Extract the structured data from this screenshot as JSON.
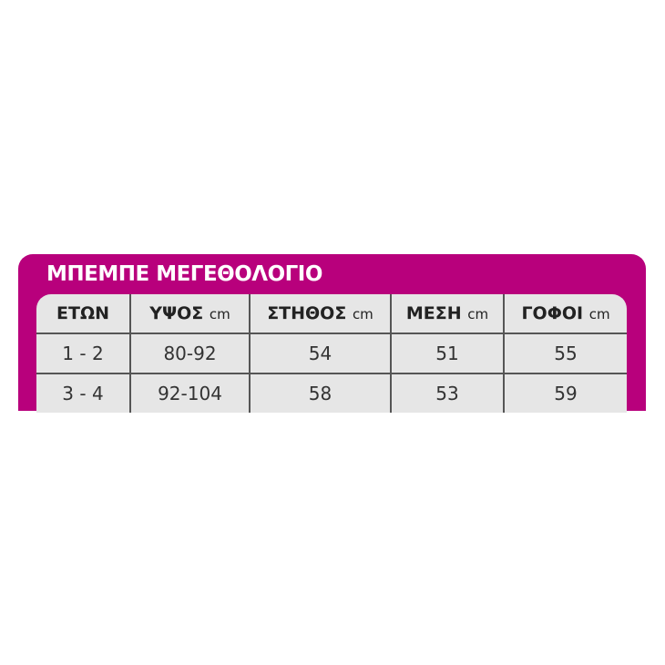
{
  "title": "ΜΠΕΜΠΕ ΜΕΓΕΘΟΛΟΓΙΟ",
  "colors": {
    "panel": "#b8007c",
    "table": "#e6e6e6"
  },
  "headers": [
    {
      "label": "ΕΤΩΝ",
      "unit": ""
    },
    {
      "label": "ΥΨΟΣ",
      "unit": "cm"
    },
    {
      "label": "ΣΤΗΘΟΣ",
      "unit": "cm"
    },
    {
      "label": "ΜΕΣΗ",
      "unit": "cm"
    },
    {
      "label": "ΓΟΦΟΙ",
      "unit": "cm"
    }
  ],
  "rows": [
    [
      "1 - 2",
      "80-92",
      "54",
      "51",
      "55"
    ],
    [
      "3 - 4",
      "92-104",
      "58",
      "53",
      "59"
    ]
  ]
}
